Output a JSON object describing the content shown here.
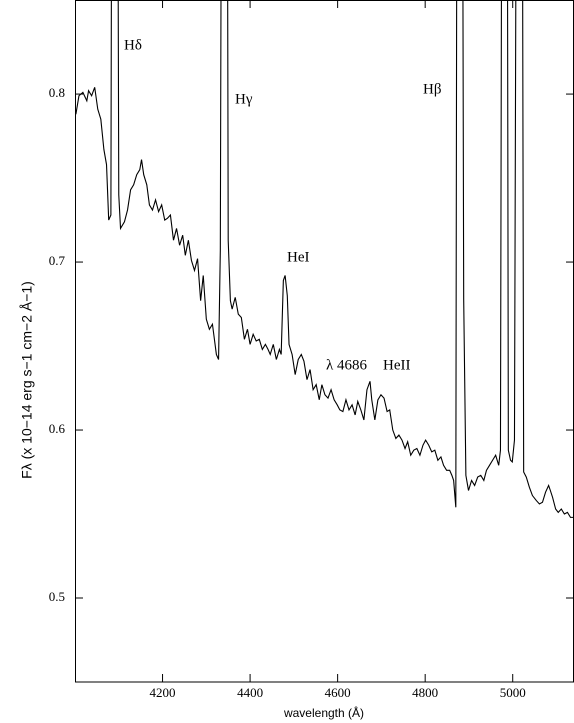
{
  "chart_data": {
    "type": "line",
    "xlabel": "wavelength (Å)",
    "ylabel": "Fλ (x 10−14 erg s−1 cm−2 Å−1)",
    "annotations": [
      "Hδ",
      "Hγ",
      "HeI",
      "λ 4686",
      "HeII",
      "Hβ"
    ],
    "xlim": [
      4000,
      5140
    ],
    "ylim": [
      0.45,
      0.856
    ],
    "xticks": [
      4200,
      4400,
      4600,
      4800,
      5000
    ],
    "yticks": [
      0.5,
      0.6,
      0.7,
      0.8
    ],
    "series": [
      {
        "color": "#000000",
        "x": [
          4002,
          4009,
          4018,
          4027,
          4031,
          4038,
          4045,
          4052,
          4059,
          4066,
          4072,
          4077,
          4082,
          4086,
          4095,
          4100,
          4104,
          4113,
          4120,
          4127,
          4134,
          4141,
          4148,
          4152,
          4157,
          4164,
          4170,
          4177,
          4184,
          4191,
          4198,
          4205,
          4211,
          4218,
          4225,
          4232,
          4239,
          4246,
          4252,
          4259,
          4266,
          4273,
          4280,
          4287,
          4293,
          4300,
          4307,
          4314,
          4323,
          4328,
          4332,
          4337,
          4346,
          4350,
          4355,
          4359,
          4366,
          4373,
          4380,
          4387,
          4394,
          4400,
          4407,
          4414,
          4421,
          4428,
          4435,
          4441,
          4446,
          4453,
          4460,
          4467,
          4471,
          4476,
          4480,
          4485,
          4489,
          4496,
          4503,
          4510,
          4517,
          4523,
          4530,
          4537,
          4544,
          4551,
          4558,
          4564,
          4571,
          4578,
          4585,
          4592,
          4599,
          4605,
          4612,
          4619,
          4626,
          4633,
          4640,
          4646,
          4653,
          4660,
          4667,
          4674,
          4678,
          4685,
          4692,
          4699,
          4706,
          4713,
          4719,
          4726,
          4733,
          4740,
          4747,
          4754,
          4760,
          4767,
          4774,
          4781,
          4788,
          4795,
          4801,
          4808,
          4815,
          4822,
          4829,
          4836,
          4842,
          4849,
          4856,
          4861,
          4865,
          4870,
          4874,
          4883,
          4888,
          4893,
          4899,
          4906,
          4913,
          4920,
          4927,
          4934,
          4940,
          4947,
          4954,
          4961,
          4968,
          4972,
          4977,
          4986,
          4990,
          4995,
          4999,
          5004,
          5011,
          5020,
          5025,
          5031,
          5038,
          5045,
          5054,
          5061,
          5068,
          5075,
          5082,
          5086,
          5091,
          5098,
          5104,
          5111,
          5118,
          5125,
          5132,
          5138
        ],
        "values": [
          0.788,
          0.799,
          0.801,
          0.796,
          0.802,
          0.799,
          0.804,
          0.791,
          0.785,
          0.767,
          0.758,
          0.725,
          0.728,
          1.2,
          1.2,
          0.74,
          0.72,
          0.724,
          0.731,
          0.743,
          0.746,
          0.752,
          0.755,
          0.761,
          0.752,
          0.746,
          0.734,
          0.731,
          0.737,
          0.73,
          0.734,
          0.725,
          0.726,
          0.728,
          0.713,
          0.72,
          0.71,
          0.716,
          0.704,
          0.713,
          0.701,
          0.695,
          0.702,
          0.677,
          0.692,
          0.666,
          0.66,
          0.663,
          0.645,
          0.642,
          0.707,
          1.2,
          1.2,
          0.713,
          0.677,
          0.672,
          0.679,
          0.669,
          0.667,
          0.654,
          0.66,
          0.651,
          0.657,
          0.653,
          0.654,
          0.648,
          0.651,
          0.648,
          0.645,
          0.651,
          0.642,
          0.648,
          0.645,
          0.689,
          0.692,
          0.68,
          0.651,
          0.645,
          0.633,
          0.642,
          0.645,
          0.641,
          0.63,
          0.636,
          0.624,
          0.627,
          0.618,
          0.627,
          0.621,
          0.619,
          0.624,
          0.618,
          0.615,
          0.612,
          0.611,
          0.618,
          0.612,
          0.615,
          0.609,
          0.617,
          0.612,
          0.606,
          0.624,
          0.629,
          0.618,
          0.606,
          0.618,
          0.621,
          0.619,
          0.611,
          0.612,
          0.6,
          0.595,
          0.597,
          0.594,
          0.589,
          0.593,
          0.585,
          0.588,
          0.589,
          0.585,
          0.591,
          0.594,
          0.591,
          0.587,
          0.588,
          0.582,
          0.584,
          0.579,
          0.576,
          0.576,
          0.573,
          0.57,
          0.554,
          1.2,
          1.2,
          0.678,
          0.573,
          0.564,
          0.57,
          0.567,
          0.572,
          0.573,
          0.57,
          0.576,
          0.579,
          0.582,
          0.585,
          0.579,
          0.588,
          1.2,
          1.2,
          0.588,
          0.582,
          0.581,
          0.594,
          1.2,
          1.2,
          0.575,
          0.572,
          0.566,
          0.561,
          0.558,
          0.556,
          0.557,
          0.563,
          0.567,
          0.564,
          0.56,
          0.553,
          0.551,
          0.553,
          0.55,
          0.551,
          0.548,
          0.548
        ]
      }
    ]
  }
}
